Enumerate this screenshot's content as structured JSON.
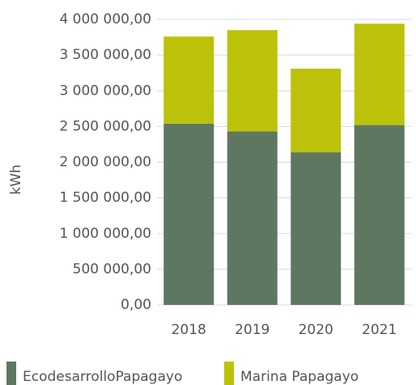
{
  "chart_data": {
    "type": "stacked_bar",
    "categories": [
      "2018",
      "2019",
      "2020",
      "2021"
    ],
    "series": [
      {
        "name": "EcodesarrolloPapagayo",
        "color": "#5f7760",
        "values": [
          2540000,
          2430000,
          2140000,
          2520000
        ]
      },
      {
        "name": "Marina Papagayo",
        "color": "#bcc20a",
        "values": [
          1220000,
          1420000,
          1170000,
          1420000
        ]
      }
    ],
    "y_label": "kWh",
    "ylim": [
      0,
      4000000
    ],
    "yticks": [
      {
        "value": 0,
        "label": "0,00"
      },
      {
        "value": 500000,
        "label": "500 000,00"
      },
      {
        "value": 1000000,
        "label": "1 000 000,00"
      },
      {
        "value": 1500000,
        "label": "1 500 000,00"
      },
      {
        "value": 2000000,
        "label": "2 000 000,00"
      },
      {
        "value": 2500000,
        "label": "2 500 000,00"
      },
      {
        "value": 3000000,
        "label": "3 000 000,00"
      },
      {
        "value": 3500000,
        "label": "3 500 000,00"
      },
      {
        "value": 4000000,
        "label": "4 000 000,00"
      }
    ],
    "grid": true
  }
}
